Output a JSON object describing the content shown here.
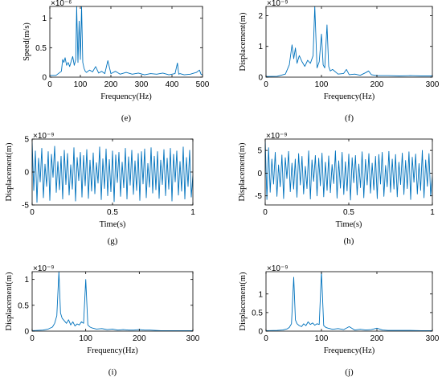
{
  "colors": {
    "series": "#0072BD",
    "axis": "#000000",
    "background": "#ffffff"
  },
  "chart_data": [
    {
      "id": "e",
      "type": "line",
      "panel_label": "(e)",
      "title": "",
      "xlabel": "Frequency(Hz)",
      "ylabel": "Speed(m/s)",
      "multiplier": "×10⁻⁶",
      "xlim": [
        0,
        500
      ],
      "ylim": [
        0,
        1.2
      ],
      "xticks": [
        0,
        100,
        200,
        300,
        400,
        500
      ],
      "xtick_labels": [
        "0",
        "100",
        "200",
        "300",
        "400",
        "500"
      ],
      "yticks": [
        0,
        0.5,
        1
      ],
      "ytick_labels": [
        "0",
        "0.5",
        "1"
      ],
      "series": [
        {
          "x": [
            0,
            20,
            38,
            42,
            46,
            50,
            55,
            60,
            65,
            70,
            75,
            80,
            85,
            88,
            92,
            96,
            100,
            104,
            108,
            112,
            116,
            120,
            130,
            140,
            150,
            160,
            170,
            180,
            190,
            200,
            215,
            230,
            250,
            270,
            290,
            310,
            330,
            350,
            370,
            390,
            410,
            418,
            422,
            426,
            440,
            460,
            480,
            490,
            495,
            500
          ],
          "y": [
            0.03,
            0.03,
            0.1,
            0.3,
            0.25,
            0.33,
            0.2,
            0.25,
            0.18,
            0.27,
            0.35,
            0.2,
            0.3,
            1.2,
            0.25,
            0.95,
            0.3,
            1.2,
            0.25,
            0.15,
            0.1,
            0.08,
            0.12,
            0.09,
            0.18,
            0.07,
            0.1,
            0.06,
            0.28,
            0.06,
            0.1,
            0.05,
            0.08,
            0.05,
            0.07,
            0.04,
            0.06,
            0.05,
            0.07,
            0.04,
            0.06,
            0.24,
            0.05,
            0.06,
            0.04,
            0.05,
            0.08,
            0.12,
            0.05,
            0.04
          ]
        }
      ]
    },
    {
      "id": "f",
      "type": "line",
      "panel_label": "(f)",
      "title": "",
      "xlabel": "Frequency(Hz)",
      "ylabel": "Displacement(m)",
      "multiplier": "×10⁻⁹",
      "xlim": [
        0,
        300
      ],
      "ylim": [
        0,
        2.3
      ],
      "xticks": [
        0,
        100,
        200,
        300
      ],
      "xtick_labels": [
        "0",
        "100",
        "200",
        "300"
      ],
      "yticks": [
        0,
        1,
        2
      ],
      "ytick_labels": [
        "0",
        "1",
        "2"
      ],
      "series": [
        {
          "x": [
            0,
            20,
            35,
            42,
            47,
            50,
            53,
            56,
            60,
            65,
            70,
            75,
            80,
            85,
            88,
            92,
            96,
            100,
            103,
            106,
            110,
            113,
            116,
            120,
            130,
            140,
            145,
            150,
            160,
            170,
            180,
            185,
            190,
            200,
            220,
            240,
            260,
            280,
            300
          ],
          "y": [
            0.02,
            0.03,
            0.1,
            0.4,
            1.05,
            0.6,
            0.95,
            0.45,
            0.7,
            0.5,
            0.35,
            0.55,
            0.45,
            0.7,
            2.3,
            0.3,
            0.5,
            1.4,
            0.4,
            0.3,
            1.7,
            0.35,
            0.2,
            0.25,
            0.1,
            0.12,
            0.25,
            0.08,
            0.1,
            0.06,
            0.15,
            0.2,
            0.08,
            0.05,
            0.05,
            0.04,
            0.05,
            0.04,
            0.04
          ]
        }
      ]
    },
    {
      "id": "g",
      "type": "line",
      "panel_label": "(g)",
      "title": "",
      "xlabel": "Time(s)",
      "ylabel": "Displacement(m)",
      "multiplier": "×10⁻⁹",
      "xlim": [
        0,
        1
      ],
      "ylim": [
        -5,
        5
      ],
      "xticks": [
        0,
        0.5,
        1
      ],
      "xtick_labels": [
        "0",
        "0.5",
        "1"
      ],
      "yticks": [
        -5,
        0,
        5
      ],
      "ytick_labels": [
        "-5",
        "0",
        "5"
      ],
      "series": [
        {
          "x": [
            0,
            0.01,
            0.02,
            0.03,
            0.04,
            0.05,
            0.06,
            0.07,
            0.08,
            0.09,
            0.1,
            0.11,
            0.12,
            0.13,
            0.14,
            0.15,
            0.16,
            0.17,
            0.18,
            0.19,
            0.2,
            0.21,
            0.22,
            0.23,
            0.24,
            0.25,
            0.26,
            0.27,
            0.28,
            0.29,
            0.3,
            0.31,
            0.32,
            0.33,
            0.34,
            0.35,
            0.36,
            0.37,
            0.38,
            0.39,
            0.4,
            0.41,
            0.42,
            0.43,
            0.44,
            0.45,
            0.46,
            0.47,
            0.48,
            0.49,
            0.5,
            0.51,
            0.52,
            0.53,
            0.54,
            0.55,
            0.56,
            0.57,
            0.58,
            0.59,
            0.6,
            0.61,
            0.62,
            0.63,
            0.64,
            0.65,
            0.66,
            0.67,
            0.68,
            0.69,
            0.7,
            0.71,
            0.72,
            0.73,
            0.74,
            0.75,
            0.76,
            0.77,
            0.78,
            0.79,
            0.8,
            0.81,
            0.82,
            0.83,
            0.84,
            0.85,
            0.86,
            0.87,
            0.88,
            0.89,
            0.9,
            0.91,
            0.92,
            0.93,
            0.94,
            0.95,
            0.96,
            0.97,
            0.98,
            0.99,
            1
          ],
          "y": [
            4.5,
            -2.8,
            3.2,
            -4.6,
            2.1,
            -1.5,
            3.6,
            -3.9,
            1.2,
            -2.2,
            3.1,
            -4.3,
            2.7,
            -0.8,
            3.9,
            -3.1,
            1.6,
            -2.7,
            2.4,
            -4.1,
            3.3,
            -1.9,
            2.8,
            -3.5,
            1.1,
            -2.6,
            3.7,
            -4.4,
            2.2,
            -1.3,
            3.0,
            -3.8,
            2.5,
            -2.1,
            3.4,
            -4.0,
            1.8,
            -2.9,
            2.9,
            -3.3,
            1.4,
            -1.7,
            3.8,
            -4.2,
            2.0,
            -2.5,
            3.5,
            -3.6,
            1.9,
            -3.0,
            3.2,
            -4.5,
            2.6,
            -1.6,
            3.0,
            -3.7,
            1.5,
            -2.4,
            3.6,
            -4.1,
            2.3,
            -2.0,
            3.3,
            -3.4,
            1.7,
            -2.8,
            2.8,
            -4.3,
            3.1,
            -1.8,
            3.5,
            -3.9,
            1.3,
            -2.3,
            3.7,
            -3.2,
            2.4,
            -2.7,
            3.1,
            -4.0,
            1.8,
            -1.9,
            3.4,
            -3.6,
            2.1,
            -2.6,
            3.6,
            -4.4,
            2.7,
            -1.5,
            3.2,
            -3.5,
            1.6,
            -2.9,
            3.8,
            -4.1,
            2.2,
            -2.2,
            3.3,
            -3.8,
            -0.5
          ]
        }
      ]
    },
    {
      "id": "h",
      "type": "line",
      "panel_label": "(h)",
      "title": "",
      "xlabel": "Time(s)",
      "ylabel": "Displacement(m)",
      "multiplier": "×10⁻⁹",
      "xlim": [
        0,
        1
      ],
      "ylim": [
        -7,
        7.5
      ],
      "xticks": [
        0,
        0.5,
        1
      ],
      "xtick_labels": [
        "0",
        "0.5",
        "1"
      ],
      "yticks": [
        -5,
        0,
        5
      ],
      "ytick_labels": [
        "-5",
        "0",
        "5"
      ],
      "series": [
        {
          "x": [
            0,
            0.01,
            0.02,
            0.03,
            0.04,
            0.05,
            0.06,
            0.07,
            0.08,
            0.09,
            0.1,
            0.11,
            0.12,
            0.13,
            0.14,
            0.15,
            0.16,
            0.17,
            0.18,
            0.19,
            0.2,
            0.21,
            0.22,
            0.23,
            0.24,
            0.25,
            0.26,
            0.27,
            0.28,
            0.29,
            0.3,
            0.31,
            0.32,
            0.33,
            0.34,
            0.35,
            0.36,
            0.37,
            0.38,
            0.39,
            0.4,
            0.41,
            0.42,
            0.43,
            0.44,
            0.45,
            0.46,
            0.47,
            0.48,
            0.49,
            0.5,
            0.51,
            0.52,
            0.53,
            0.54,
            0.55,
            0.56,
            0.57,
            0.58,
            0.59,
            0.6,
            0.61,
            0.62,
            0.63,
            0.64,
            0.65,
            0.66,
            0.67,
            0.68,
            0.69,
            0.7,
            0.71,
            0.72,
            0.73,
            0.74,
            0.75,
            0.76,
            0.77,
            0.78,
            0.79,
            0.8,
            0.81,
            0.82,
            0.83,
            0.84,
            0.85,
            0.86,
            0.87,
            0.88,
            0.89,
            0.9,
            0.91,
            0.92,
            0.93,
            0.94,
            0.95,
            0.96,
            0.97,
            0.98,
            0.99,
            1
          ],
          "y": [
            7.3,
            -5.8,
            5.6,
            -4.2,
            3.1,
            -2.4,
            4.6,
            -5.1,
            1.8,
            -3.0,
            4.0,
            -5.6,
            3.4,
            -1.2,
            4.8,
            -4.1,
            2.2,
            -3.5,
            3.1,
            -5.3,
            4.3,
            -2.6,
            3.7,
            -4.6,
            1.5,
            -3.4,
            4.9,
            -5.7,
            2.9,
            -1.8,
            3.9,
            -5.0,
            3.3,
            -2.8,
            4.4,
            -5.2,
            2.4,
            -3.8,
            3.8,
            -4.3,
            1.9,
            -2.3,
            4.9,
            -5.5,
            2.7,
            -3.3,
            4.6,
            -4.7,
            2.5,
            -3.9,
            4.2,
            -5.9,
            3.4,
            -2.1,
            3.9,
            -4.8,
            2.0,
            -3.2,
            4.7,
            -5.4,
            3.0,
            -2.6,
            4.3,
            -4.4,
            2.2,
            -3.7,
            3.7,
            -5.6,
            4.1,
            -2.4,
            4.6,
            -5.1,
            1.7,
            -3.0,
            4.8,
            -4.2,
            3.1,
            -3.5,
            4.1,
            -5.2,
            2.4,
            -2.5,
            4.4,
            -4.7,
            2.8,
            -3.4,
            4.7,
            -5.8,
            3.5,
            -2.0,
            4.2,
            -4.6,
            2.1,
            -3.8,
            5.0,
            -5.4,
            2.9,
            -2.9,
            4.3,
            -5.0,
            -0.6
          ]
        }
      ]
    },
    {
      "id": "i",
      "type": "line",
      "panel_label": "(i)",
      "title": "",
      "xlabel": "Frequency(Hz)",
      "ylabel": "Displacement(m)",
      "multiplier": "×10⁻⁹",
      "xlim": [
        0,
        300
      ],
      "ylim": [
        0,
        1.15
      ],
      "xticks": [
        0,
        100,
        200,
        300
      ],
      "xtick_labels": [
        "0",
        "100",
        "200",
        "300"
      ],
      "yticks": [
        0,
        0.5,
        1
      ],
      "ytick_labels": [
        "0",
        "0.5",
        "1"
      ],
      "series": [
        {
          "x": [
            0,
            20,
            30,
            38,
            42,
            46,
            50,
            53,
            56,
            60,
            64,
            68,
            72,
            76,
            80,
            84,
            88,
            92,
            96,
            100,
            104,
            108,
            112,
            120,
            130,
            140,
            150,
            160,
            170,
            180,
            190,
            200,
            210,
            220,
            240,
            260,
            280,
            300
          ],
          "y": [
            0.01,
            0.02,
            0.04,
            0.08,
            0.15,
            0.3,
            1.15,
            0.35,
            0.25,
            0.2,
            0.15,
            0.22,
            0.12,
            0.18,
            0.1,
            0.14,
            0.12,
            0.18,
            0.15,
            1.0,
            0.12,
            0.08,
            0.06,
            0.04,
            0.05,
            0.03,
            0.04,
            0.02,
            0.03,
            0.02,
            0.02,
            0.03,
            0.02,
            0.02,
            0.01,
            0.01,
            0.01,
            0.01
          ]
        }
      ]
    },
    {
      "id": "j",
      "type": "line",
      "panel_label": "(j)",
      "title": "",
      "xlabel": "Frequency(Hz)",
      "ylabel": "Displacement(m)",
      "multiplier": "×10⁻⁹",
      "xlim": [
        0,
        300
      ],
      "ylim": [
        0,
        1.6
      ],
      "xticks": [
        0,
        100,
        200,
        300
      ],
      "xtick_labels": [
        "0",
        "100",
        "200",
        "300"
      ],
      "yticks": [
        0,
        0.5,
        1
      ],
      "ytick_labels": [
        "0",
        "0.5",
        "1"
      ],
      "series": [
        {
          "x": [
            0,
            20,
            30,
            38,
            42,
            46,
            50,
            53,
            56,
            60,
            64,
            68,
            72,
            76,
            80,
            84,
            88,
            92,
            96,
            100,
            104,
            108,
            112,
            120,
            130,
            140,
            150,
            160,
            170,
            180,
            190,
            200,
            210,
            220,
            240,
            260,
            280,
            300
          ],
          "y": [
            0.01,
            0.02,
            0.03,
            0.06,
            0.1,
            0.2,
            1.45,
            0.3,
            0.2,
            0.15,
            0.12,
            0.2,
            0.15,
            0.25,
            0.18,
            0.22,
            0.16,
            0.2,
            0.18,
            1.6,
            0.15,
            0.1,
            0.08,
            0.05,
            0.07,
            0.04,
            0.12,
            0.03,
            0.05,
            0.03,
            0.04,
            0.08,
            0.03,
            0.02,
            0.02,
            0.02,
            0.01,
            0.01
          ]
        }
      ]
    }
  ]
}
